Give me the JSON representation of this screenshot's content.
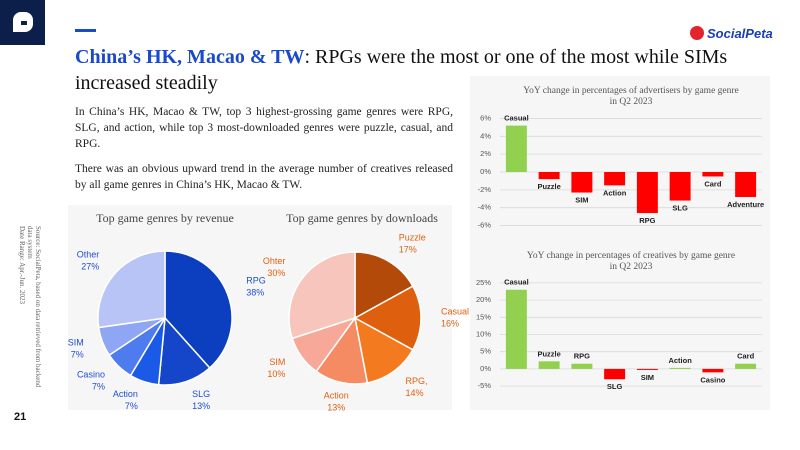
{
  "slide": {
    "title_highlight": "China’s HK, Macao & TW",
    "title_rest": ": RPGs were the most or one of the most while SIMs increased steadily",
    "paragraphs": [
      "In China’s HK, Macao & TW, top 3 highest-grossing game genres were RPG, SLG, and action, while top 3 most-downloaded genres were puzzle, casual, and RPG.",
      "There was an obvious upward trend in the average number of creatives released by all game genres in China’s HK, Macao & TW."
    ],
    "source": [
      "Source: SocialPeta, based on data retrieved from backend",
      "data system",
      "Date Range: Apr.-Jun. 2023"
    ],
    "page": "21",
    "brand": "SocialPeta"
  },
  "chart_data": [
    {
      "type": "pie",
      "title": "Top game genres by revenue",
      "categories": [
        "RPG",
        "SLG",
        "Action",
        "Casino",
        "SIM",
        "Other"
      ],
      "values": [
        38,
        13,
        7,
        7,
        7,
        27
      ],
      "value_labels": [
        "38%",
        "13%",
        "7%",
        "7%",
        "7%",
        "27%"
      ],
      "colors": [
        "#0b3fbf",
        "#1546c9",
        "#1b5ae6",
        "#4e7cee",
        "#8ea6f3",
        "#b8c3f6"
      ],
      "label_color": "#1f4fd1"
    },
    {
      "type": "pie",
      "title": "Top game genres by downloads",
      "categories": [
        "Puzzle",
        "Casual",
        "RPG,",
        "Action",
        "SIM",
        "Ohter"
      ],
      "values": [
        17,
        16,
        14,
        13,
        10,
        30
      ],
      "value_labels": [
        "17%",
        "16%",
        "14%",
        "13%",
        "10%",
        "30%"
      ],
      "colors": [
        "#b34a0a",
        "#de5f0e",
        "#f47a1f",
        "#f58b62",
        "#f7a898",
        "#f8c5bd"
      ],
      "label_color": "#e0600f"
    },
    {
      "type": "bar",
      "title": [
        "YoY change in percentages of advertisers by game genre",
        "in Q2 2023"
      ],
      "categories": [
        "Casual",
        "Puzzle",
        "SIM",
        "Action",
        "RPG",
        "SLG",
        "Card",
        "Adventure"
      ],
      "values": [
        5.2,
        -0.8,
        -2.3,
        -1.5,
        -4.6,
        -3.2,
        -0.5,
        -2.8
      ],
      "positive_color": "#92d050",
      "negative_color": "#ff0000",
      "ylim": [
        -6.5,
        6.5
      ],
      "yticks": [
        {
          "value": -6,
          "label": "-6%"
        },
        {
          "value": -4,
          "label": "-4%"
        },
        {
          "value": -2,
          "label": "-2%"
        },
        {
          "value": 0,
          "label": "0%"
        },
        {
          "value": 2,
          "label": "2%"
        },
        {
          "value": 4,
          "label": "4%"
        },
        {
          "value": 6,
          "label": "6%"
        }
      ],
      "grid": true
    },
    {
      "type": "bar",
      "title": [
        "YoY change in percentages of creatives by game genre",
        "in Q2 2023"
      ],
      "categories": [
        "Casual",
        "Puzzle",
        "RPG",
        "SLG",
        "SIM",
        "Action",
        "Casino",
        "Card"
      ],
      "values": [
        23,
        2.2,
        1.5,
        -3,
        -0.3,
        0.3,
        -1,
        1.5
      ],
      "positive_color": "#92d050",
      "negative_color": "#ff0000",
      "ylim": [
        -7,
        27
      ],
      "yticks": [
        {
          "value": -5,
          "label": "-5%"
        },
        {
          "value": 0,
          "label": "0%"
        },
        {
          "value": 5,
          "label": "5%"
        },
        {
          "value": 10,
          "label": "10%"
        },
        {
          "value": 15,
          "label": "15%"
        },
        {
          "value": 20,
          "label": "20%"
        },
        {
          "value": 25,
          "label": "25%"
        }
      ],
      "grid": true
    }
  ]
}
